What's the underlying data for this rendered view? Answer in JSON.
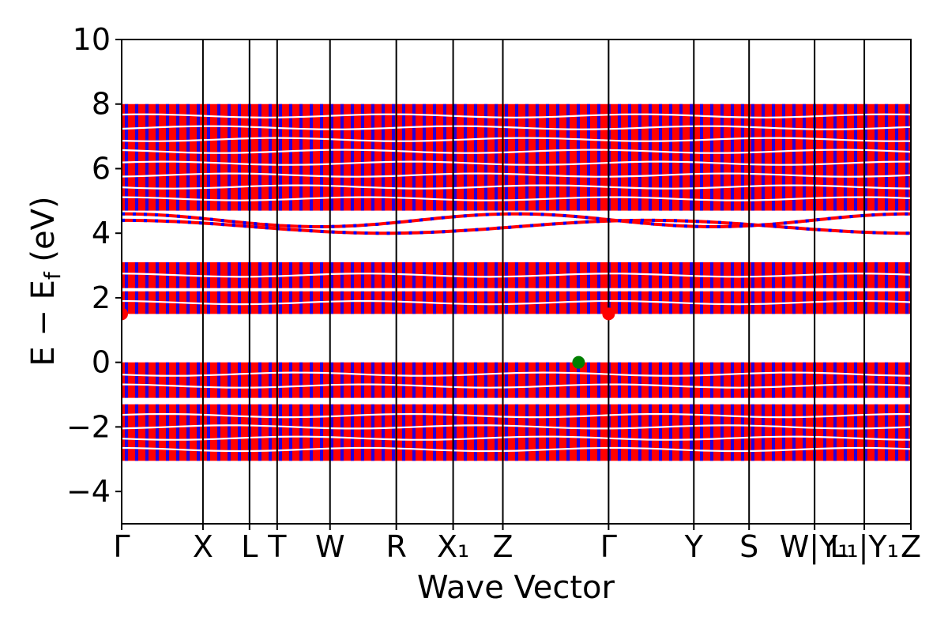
{
  "chart_data": {
    "type": "line",
    "title": "",
    "xlabel": "Wave Vector",
    "ylabel": "E − E_f (eV)",
    "ylabel_parts": {
      "main": "E − E",
      "sub": "f",
      "unit": " (eV)"
    },
    "ylim": [
      -5,
      10
    ],
    "yticks": [
      -4,
      -2,
      0,
      2,
      4,
      6,
      8,
      10
    ],
    "ytick_labels": [
      "−4",
      "−2",
      "0",
      "2",
      "4",
      "6",
      "8",
      "10"
    ],
    "kpath": [
      {
        "label": "Γ",
        "x": 0.0
      },
      {
        "label": "X",
        "x": 0.103
      },
      {
        "label": "L",
        "x": 0.162
      },
      {
        "label": "T",
        "x": 0.197
      },
      {
        "label": "W",
        "x": 0.264
      },
      {
        "label": "R",
        "x": 0.348
      },
      {
        "label": "X₁",
        "x": 0.42
      },
      {
        "label": "Z",
        "x": 0.483
      },
      {
        "label": "Γ",
        "x": 0.617
      },
      {
        "label": "Y",
        "x": 0.725
      },
      {
        "label": "S",
        "x": 0.795
      },
      {
        "label": "W|Y₁",
        "x": 0.878
      },
      {
        "label": "L₁|Y₁",
        "x": 0.941
      },
      {
        "label": "Z",
        "x": 1.0
      }
    ],
    "series_colors": {
      "spin_up": "#ff0000",
      "spin_down": "#0000ff"
    },
    "bands": {
      "valence_block_low": [
        -3.05,
        -1.3
      ],
      "valence_block_high": [
        -1.1,
        0.0
      ],
      "conduction_block_1": [
        1.5,
        2.2
      ],
      "conduction_block_2": [
        2.3,
        3.1
      ],
      "conduction_block_3": [
        4.7,
        8.0
      ],
      "isolated_conduction_bands": [
        {
          "min": 4.0,
          "max": 4.4
        },
        {
          "min": 4.2,
          "max": 4.6
        }
      ]
    },
    "markers": [
      {
        "name": "vbm",
        "x": 0.579,
        "y": 0.0,
        "color": "#008000"
      },
      {
        "name": "cbm",
        "x": 0.617,
        "y": 1.5,
        "color": "#ff0000"
      },
      {
        "name": "cbm-edge",
        "x": 0.0,
        "y": 1.5,
        "color": "#ff0000"
      }
    ],
    "grid": false,
    "legend": "none"
  }
}
